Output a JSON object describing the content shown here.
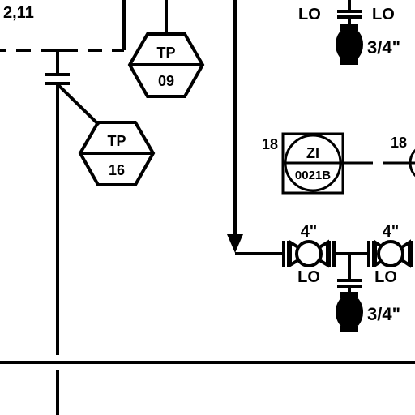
{
  "drawing_refs": {
    "top_left": "2,11"
  },
  "instruments": [
    {
      "function": "TP",
      "number": "09"
    },
    {
      "function": "TP",
      "number": "16"
    }
  ],
  "indicator": {
    "tag_function": "ZI",
    "tag_number": "0021B",
    "left_label": "18",
    "right_label": "18"
  },
  "valves": {
    "top_drain": {
      "size": "3/4\"",
      "lock_left": "LO",
      "lock_right": "LO"
    },
    "bottom_drain": {
      "size": "3/4\""
    },
    "gate_valve_left": {
      "size": "4\"",
      "lock": "LO"
    },
    "gate_valve_right": {
      "size": "4\"",
      "lock": "LO"
    }
  },
  "colors": {
    "line": "#000000",
    "background": "#ffffff"
  }
}
